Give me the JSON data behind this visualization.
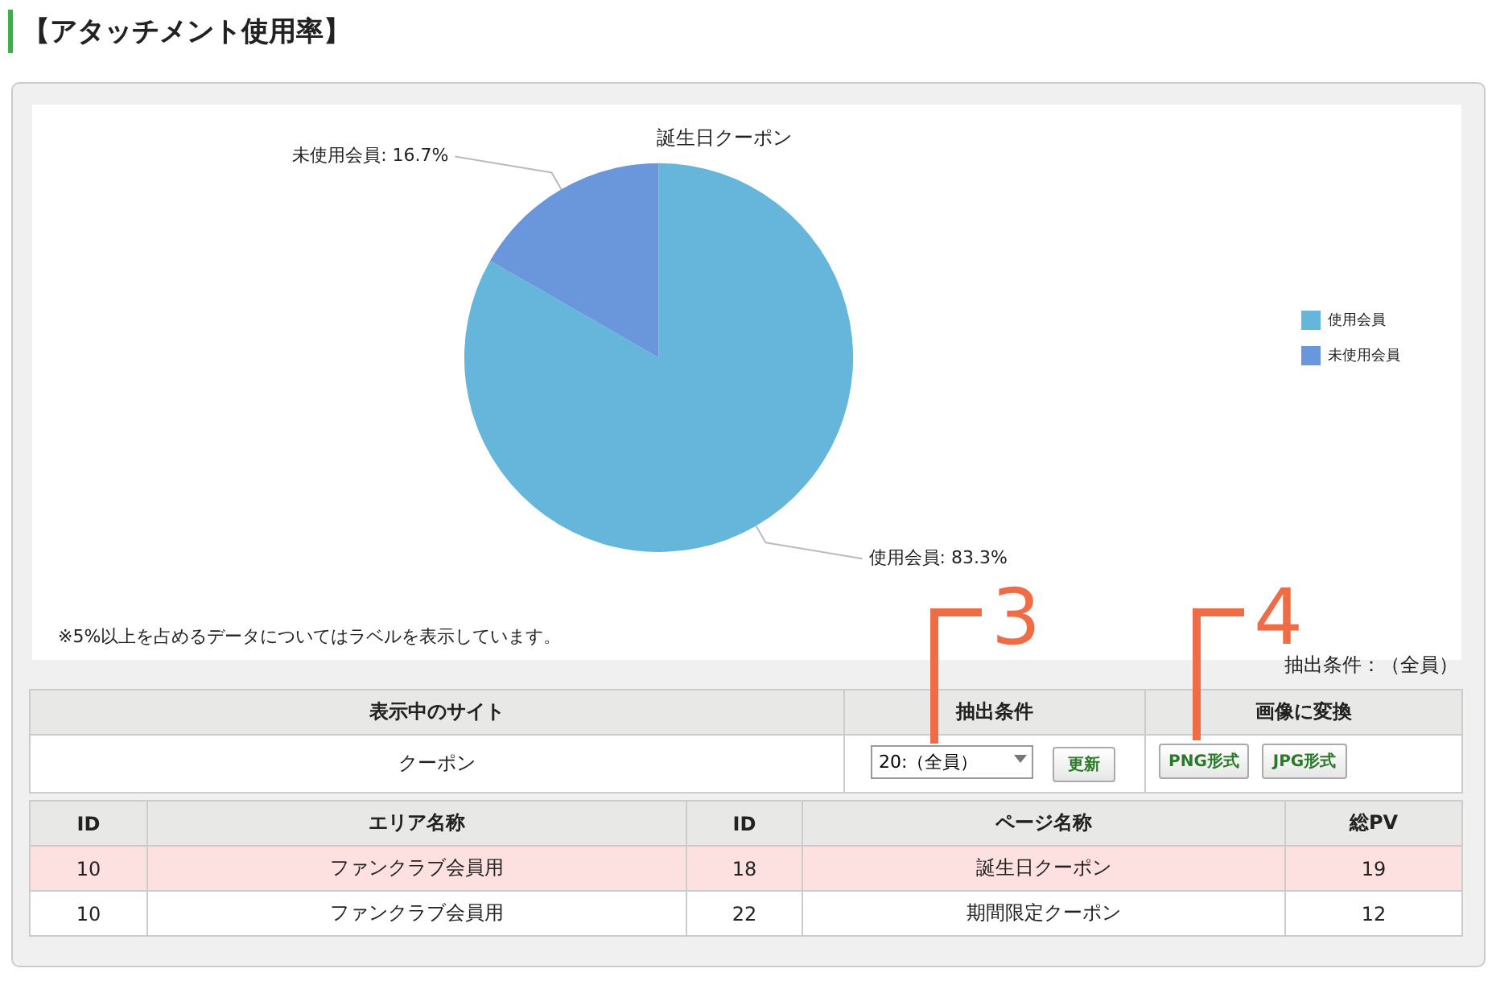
{
  "chart_data": {
    "type": "pie",
    "title": "誕生日クーポン",
    "categories": [
      "使用会員",
      "未使用会員"
    ],
    "values": [
      83.3,
      16.7
    ],
    "colors": [
      "#66b6dc",
      "#6a96dc"
    ],
    "value_labels": [
      "使用会員: 83.3%",
      "未使用会員: 16.7%"
    ],
    "legend": "right",
    "annotations": [
      "【アタッチメント使用率】",
      "※5%以上を占めるデータについてはラベルを表示しています。",
      "抽出条件：（全員）",
      "表示中のサイト",
      "抽出条件",
      "画像に変換",
      "クーポン",
      "20:（全員）",
      "更新",
      "PNG形式",
      "JPG形式",
      "ID",
      "エリア名称",
      "ID",
      "ページ名称",
      "総PV",
      "10",
      "ファンクラブ会員用",
      "18",
      "誕生日クーポン",
      "19",
      "10",
      "ファンクラブ会員用",
      "22",
      "期間限定クーポン",
      "12",
      "3",
      "4"
    ]
  }
}
